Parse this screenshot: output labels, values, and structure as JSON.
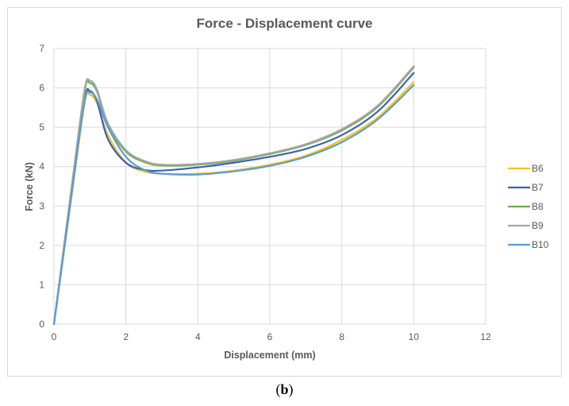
{
  "caption": {
    "open": "(",
    "letter": "b",
    "close": ")"
  },
  "chart_data": {
    "type": "line",
    "title": "Force - Displacement curve",
    "xlabel": "Displacement  (mm)",
    "ylabel": "Force (kN)",
    "xlim": [
      0,
      12
    ],
    "ylim": [
      0,
      7
    ],
    "xticks": [
      0,
      2,
      4,
      6,
      8,
      10,
      12
    ],
    "yticks": [
      0,
      1,
      2,
      3,
      4,
      5,
      6,
      7
    ],
    "grid": true,
    "legend_position": "right",
    "series": [
      {
        "name": "B6",
        "color": "#f5c518",
        "x": [
          0,
          0.5,
          0.85,
          1.0,
          1.2,
          1.5,
          2.0,
          2.5,
          3.0,
          4.0,
          5.0,
          6.0,
          7.0,
          8.0,
          9.0,
          10.0
        ],
        "y": [
          0,
          3.3,
          5.6,
          5.82,
          5.6,
          4.8,
          4.1,
          3.88,
          3.82,
          3.82,
          3.9,
          4.05,
          4.28,
          4.68,
          5.25,
          6.15
        ]
      },
      {
        "name": "B7",
        "color": "#3a62b0",
        "x": [
          0,
          0.5,
          0.85,
          1.0,
          1.2,
          1.5,
          2.0,
          2.5,
          3.0,
          4.0,
          5.0,
          6.0,
          7.0,
          8.0,
          9.0,
          10.0
        ],
        "y": [
          0,
          3.4,
          5.7,
          5.92,
          5.65,
          4.7,
          4.1,
          3.92,
          3.9,
          3.98,
          4.1,
          4.25,
          4.45,
          4.8,
          5.4,
          6.38
        ]
      },
      {
        "name": "B8",
        "color": "#70ad47",
        "x": [
          0,
          0.5,
          0.85,
          1.0,
          1.2,
          1.5,
          2.0,
          2.5,
          3.0,
          4.0,
          5.0,
          6.0,
          7.0,
          8.0,
          9.0,
          10.0
        ],
        "y": [
          0,
          3.5,
          5.9,
          6.12,
          5.9,
          5.05,
          4.38,
          4.12,
          4.03,
          4.05,
          4.15,
          4.32,
          4.55,
          4.92,
          5.52,
          6.52
        ]
      },
      {
        "name": "B9",
        "color": "#a5a5a5",
        "x": [
          0,
          0.5,
          0.85,
          1.0,
          1.2,
          1.5,
          2.0,
          2.5,
          3.0,
          4.0,
          5.0,
          6.0,
          7.0,
          8.0,
          9.0,
          10.0
        ],
        "y": [
          0,
          3.55,
          5.95,
          6.18,
          5.95,
          5.1,
          4.42,
          4.15,
          4.05,
          4.07,
          4.17,
          4.34,
          4.57,
          4.95,
          5.55,
          6.55
        ]
      },
      {
        "name": "B10",
        "color": "#5b9bd5",
        "x": [
          0,
          0.5,
          0.85,
          1.0,
          1.2,
          1.5,
          2.0,
          2.5,
          3.0,
          4.0,
          5.0,
          6.0,
          7.0,
          8.0,
          9.0,
          10.0
        ],
        "y": [
          0,
          3.4,
          5.65,
          5.88,
          5.7,
          5.0,
          4.25,
          3.92,
          3.82,
          3.8,
          3.88,
          4.02,
          4.25,
          4.62,
          5.2,
          6.07
        ]
      }
    ]
  }
}
